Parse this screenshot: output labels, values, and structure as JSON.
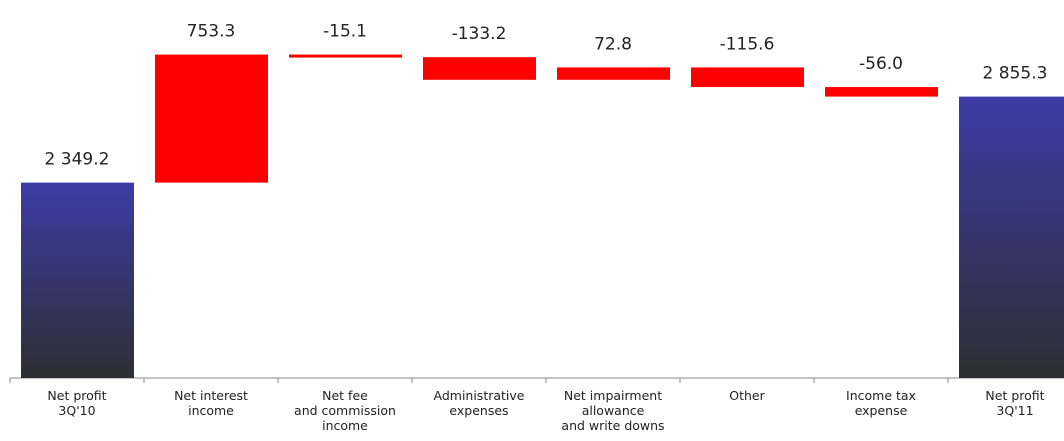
{
  "chart_data": {
    "type": "waterfall",
    "categories": [
      "Net profit\n3Q'10",
      "Net interest\nincome",
      "Net fee\nand commission\nincome",
      "Administrative\nexpenses",
      "Net impairment\nallowance\nand write downs",
      "Other",
      "Income tax\nexpense",
      "Net profit\n3Q'11"
    ],
    "measure": [
      "absolute",
      "relative",
      "relative",
      "relative",
      "relative",
      "relative",
      "relative",
      "absolute"
    ],
    "values": [
      2349.2,
      753.3,
      -15.1,
      -133.2,
      72.8,
      -115.6,
      -56.0,
      2855.3
    ],
    "value_labels": [
      "2 349.2",
      "753.3",
      "-15.1",
      "-133.2",
      "72.8",
      "-115.6",
      "-56.0",
      "2 855.3"
    ],
    "total_color": [
      "#3c3ca6",
      "#2e2e33"
    ],
    "step_color": "#ff0000",
    "ylim": [
      1200,
      3400
    ]
  }
}
